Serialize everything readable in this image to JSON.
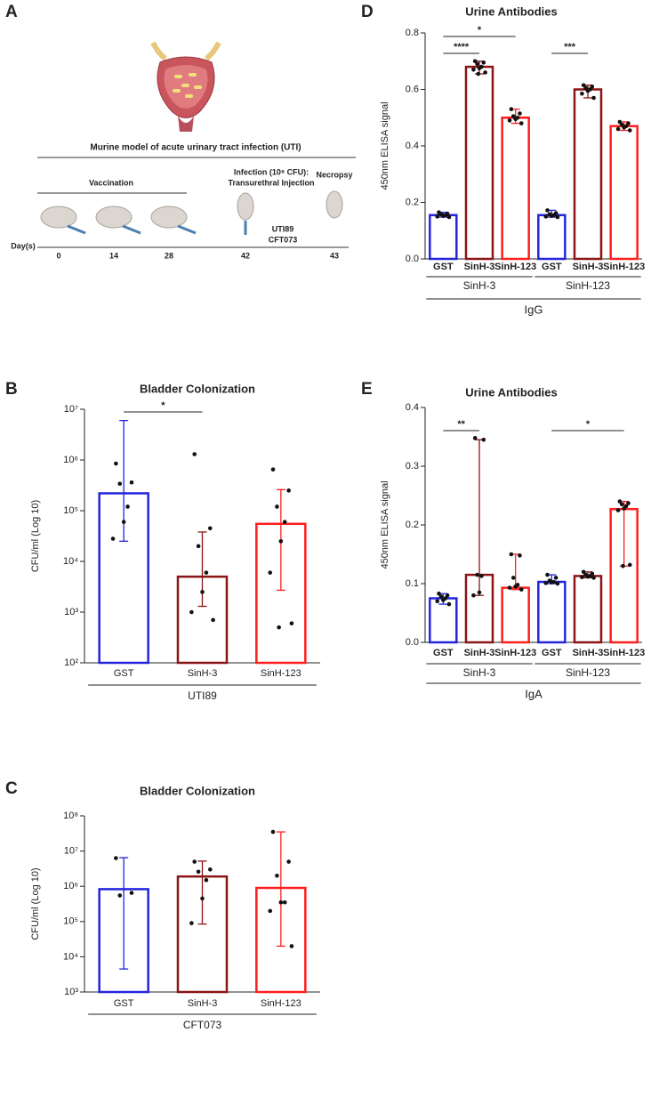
{
  "diagram": {
    "panel": "A",
    "title": "Murine model of acute urinary tract infection (UTI)",
    "vaccination": "Vaccination",
    "infection": [
      "Infection (10⁸ CFU):",
      "Transurethral Injection"
    ],
    "necropsy": "Necropsy",
    "strains": [
      "UTI89",
      "CFT073"
    ],
    "day_label": "Day(s)",
    "days": [
      0,
      14,
      28,
      42,
      43
    ]
  },
  "chart_data": [
    {
      "panel": "B",
      "type": "bar",
      "title": "Bladder Colonization",
      "y_label": "CFU/ml (Log 10)",
      "log_scale": true,
      "ylim": [
        100,
        10000000
      ],
      "yticks": [
        {
          "value": 100,
          "label": "10²"
        },
        {
          "value": 1000,
          "label": "10³"
        },
        {
          "value": 10000,
          "label": "10⁴"
        },
        {
          "value": 100000,
          "label": "10⁵"
        },
        {
          "value": 1000000,
          "label": "10⁶"
        },
        {
          "value": 10000000,
          "label": "10⁷"
        }
      ],
      "colors": [
        "#2424dc",
        "#8b1414",
        "#ff1e1e"
      ],
      "groups": [
        {
          "label": "UTI89",
          "categories": [
            "GST",
            "SinH-3",
            "SinH-123"
          ],
          "values": [
            220000,
            5000,
            55000
          ],
          "err_low": [
            25000,
            1300,
            2700
          ],
          "err_high": [
            6000000,
            38000,
            260000
          ],
          "points": [
            [
              850000,
              360000,
              340000,
              120000,
              60000,
              28000
            ],
            [
              1300000,
              45000,
              20000,
              6000,
              2500,
              1000,
              700
            ],
            [
              650000,
              250000,
              120000,
              60000,
              25000,
              6000,
              600,
              500
            ]
          ]
        }
      ],
      "significance": [
        "*"
      ]
    },
    {
      "panel": "C",
      "type": "bar",
      "title": "Bladder Colonization",
      "y_label": "CFU/ml (Log 10)",
      "log_scale": true,
      "ylim": [
        1000,
        100000000
      ],
      "yticks": [
        {
          "value": 1000,
          "label": "10³"
        },
        {
          "value": 10000,
          "label": "10⁴"
        },
        {
          "value": 100000,
          "label": "10⁵"
        },
        {
          "value": 1000000,
          "label": "10⁶"
        },
        {
          "value": 10000000,
          "label": "10⁷"
        },
        {
          "value": 100000000,
          "label": "10⁸"
        }
      ],
      "colors": [
        "#2424dc",
        "#8b1414",
        "#ff1e1e"
      ],
      "groups": [
        {
          "label": "CFT073",
          "categories": [
            "GST",
            "SinH-3",
            "SinH-123"
          ],
          "values": [
            830000,
            1900000,
            900000
          ],
          "err_low": [
            4500,
            85000,
            20000
          ],
          "err_high": [
            6500000,
            5200000,
            35000000
          ],
          "points": [
            [
              6300000,
              650000,
              550000
            ],
            [
              5000000,
              3000000,
              2600000,
              1500000,
              450000,
              90000
            ],
            [
              35000000,
              5000000,
              2000000,
              350000,
              350000,
              200000,
              20000
            ]
          ]
        }
      ],
      "significance": []
    },
    {
      "panel": "D",
      "type": "bar",
      "title": "Urine Antibodies",
      "y_label": "450nm ELISA signal",
      "log_scale": false,
      "group_title": "IgG",
      "ylim": [
        0,
        0.8
      ],
      "yticks": [
        {
          "value": 0,
          "label": "0.0"
        },
        0.2,
        0.4,
        0.6,
        0.8
      ],
      "colors": [
        "#2424dc",
        "#8b1414",
        "#ff1e1e"
      ],
      "groups": [
        {
          "label": "SinH-3",
          "categories": [
            "GST",
            "SinH-3",
            "SinH-123"
          ],
          "values": [
            0.155,
            0.68,
            0.5
          ],
          "err_low": [
            0.148,
            0.655,
            0.48
          ],
          "err_high": [
            0.165,
            0.7,
            0.53
          ],
          "points": [
            [
              0.165,
              0.16,
              0.158,
              0.155,
              0.152,
              0.15,
              0.148
            ],
            [
              0.7,
              0.695,
              0.69,
              0.68,
              0.675,
              0.67,
              0.66,
              0.655
            ],
            [
              0.53,
              0.515,
              0.505,
              0.5,
              0.495,
              0.49,
              0.48
            ]
          ]
        },
        {
          "label": "SinH-123",
          "categories": [
            "GST",
            "SinH-3",
            "SinH-123"
          ],
          "values": [
            0.155,
            0.6,
            0.47
          ],
          "err_low": [
            0.148,
            0.57,
            0.455
          ],
          "err_high": [
            0.172,
            0.615,
            0.485
          ],
          "points": [
            [
              0.172,
              0.162,
              0.158,
              0.155,
              0.152,
              0.15,
              0.148
            ],
            [
              0.615,
              0.61,
              0.605,
              0.6,
              0.595,
              0.585,
              0.57
            ],
            [
              0.485,
              0.48,
              0.475,
              0.47,
              0.465,
              0.46,
              0.455
            ]
          ]
        }
      ],
      "significance": [
        "****",
        "*",
        "***"
      ]
    },
    {
      "panel": "E",
      "type": "bar",
      "title": "Urine Antibodies",
      "y_label": "450nm ELISA signal",
      "log_scale": false,
      "group_title": "IgA",
      "ylim": [
        0,
        0.4
      ],
      "yticks": [
        {
          "value": 0,
          "label": "0.0"
        },
        0.1,
        0.2,
        0.3,
        0.4
      ],
      "colors": [
        "#2424dc",
        "#8b1414",
        "#ff1e1e"
      ],
      "groups": [
        {
          "label": "SinH-3",
          "categories": [
            "GST",
            "SinH-3",
            "SinH-123"
          ],
          "values": [
            0.075,
            0.115,
            0.093
          ],
          "err_low": [
            0.065,
            0.08,
            0.09
          ],
          "err_high": [
            0.083,
            0.345,
            0.15
          ],
          "points": [
            [
              0.083,
              0.08,
              0.078,
              0.075,
              0.072,
              0.07,
              0.065
            ],
            [
              0.348,
              0.345,
              0.115,
              0.113,
              0.085,
              0.08
            ],
            [
              0.15,
              0.148,
              0.11,
              0.098,
              0.095,
              0.093,
              0.09
            ]
          ]
        },
        {
          "label": "SinH-123",
          "categories": [
            "GST",
            "SinH-3",
            "SinH-123"
          ],
          "values": [
            0.103,
            0.113,
            0.227
          ],
          "err_low": [
            0.1,
            0.11,
            0.13
          ],
          "err_high": [
            0.115,
            0.12,
            0.24
          ],
          "points": [
            [
              0.115,
              0.11,
              0.105,
              0.103,
              0.102,
              0.101,
              0.1
            ],
            [
              0.12,
              0.117,
              0.115,
              0.113,
              0.112,
              0.111,
              0.11
            ],
            [
              0.24,
              0.237,
              0.235,
              0.232,
              0.228,
              0.225,
              0.132,
              0.13
            ]
          ]
        }
      ],
      "significance": [
        "**",
        "*"
      ]
    }
  ]
}
